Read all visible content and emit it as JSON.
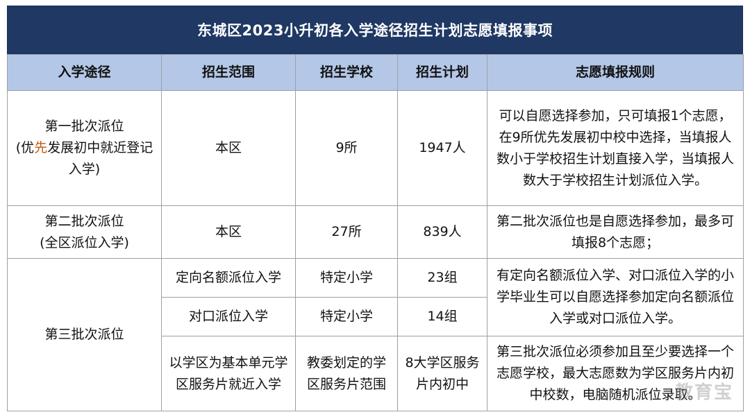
{
  "title": "东城区2023小升初各入学途径招生计划志愿填报事项",
  "headers": {
    "route": "入学途径",
    "scope": "招生范围",
    "schools": "招生学校",
    "plan": "招生计划",
    "rules": "志愿填报规则"
  },
  "rows": {
    "r1": {
      "route_line1": "第一批次派位",
      "route_line2_pre": "(优",
      "route_line2_hl": "先",
      "route_line2_post": "发展初中就近登记入学)",
      "scope": "本区",
      "schools": "9所",
      "plan": "1947人",
      "rules": "可以自愿选择参加，只可填报1个志愿，在9所优先发展初中校中选择，当填报人数小于学校招生计划直接入学，当填报人数大于学校招生计划派位入学。"
    },
    "r2": {
      "route_line1": "第二批次派位",
      "route_line2": "(全区派位入学)",
      "scope": "本区",
      "schools": "27所",
      "plan": "839人",
      "rules": "第二批次派位也是自愿选择参加，最多可填报8个志愿；"
    },
    "r3": {
      "route": "第三批次派位",
      "sub1": {
        "scope": "定向名额派位入学",
        "schools": "特定小学",
        "plan": "23组"
      },
      "sub2": {
        "scope": "对口派位入学",
        "schools": "特定小学",
        "plan": "14组"
      },
      "rules_a": "有定向名额派位入学、对口派位入学的小学毕业生可以自愿选择参加定向名额派位入学或对口派位入学。",
      "sub3": {
        "scope": "以学区为基本单元学区服务片就近入学",
        "schools": "教委划定的学区服务片范围",
        "plan": "8大学区服务片内初中",
        "rules": "第三批次派位必须参加且至少要选择一个志愿学校，最大志愿数为学区服务片内初中校数，电脑随机派位录取。"
      }
    }
  },
  "watermark": "教育宝"
}
